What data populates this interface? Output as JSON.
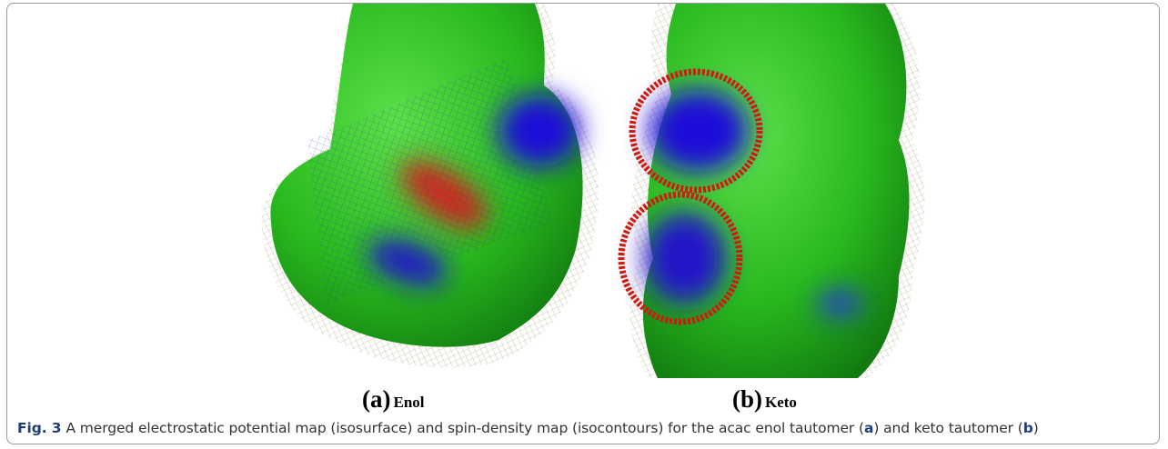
{
  "figure": {
    "panels": [
      {
        "letter": "(a)",
        "label": "Enol"
      },
      {
        "letter": "(b)",
        "label": "Keto"
      }
    ],
    "caption": {
      "label": "Fig. 3",
      "parts": [
        "A merged electrostatic potential map (isosurface) and spin-density map (isocontours) for the acac enol tautomer (",
        "a",
        ") and keto tautomer (",
        "b",
        ")"
      ]
    }
  }
}
